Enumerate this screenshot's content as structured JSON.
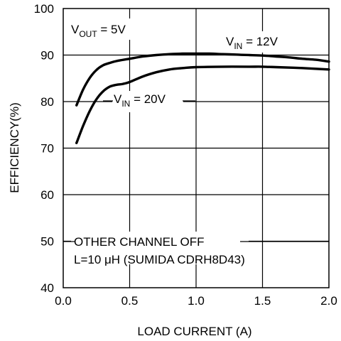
{
  "chart_data": {
    "type": "line",
    "xlabel": "LOAD CURRENT (A)",
    "ylabel": "EFFICIENCY(%)",
    "xlim": [
      0.0,
      2.0
    ],
    "ylim": [
      40,
      100
    ],
    "x_ticks": [
      0.0,
      0.5,
      1.0,
      1.5,
      2.0
    ],
    "x_tick_labels": [
      "0.0",
      "0.5",
      "1.0",
      "1.5",
      "2.0"
    ],
    "y_ticks": [
      40,
      50,
      60,
      70,
      80,
      90,
      100
    ],
    "y_tick_labels": [
      "40",
      "50",
      "60",
      "70",
      "80",
      "90",
      "100"
    ],
    "grid": true,
    "series": [
      {
        "name": "VIN = 12V",
        "label": {
          "main": "V",
          "sub": "IN",
          "rest": " = 12V"
        },
        "x": [
          0.1,
          0.15,
          0.2,
          0.25,
          0.3,
          0.35,
          0.4,
          0.5,
          0.6,
          0.7,
          0.8,
          0.9,
          1.0,
          1.1,
          1.2,
          1.3,
          1.4,
          1.5,
          1.6,
          1.7,
          1.8,
          1.9,
          2.0
        ],
        "y": [
          79.2,
          82.6,
          85.1,
          86.8,
          87.8,
          88.3,
          88.7,
          89.2,
          89.7,
          90.0,
          90.2,
          90.3,
          90.3,
          90.3,
          90.2,
          90.1,
          90.0,
          89.9,
          89.7,
          89.5,
          89.2,
          89.0,
          88.6
        ]
      },
      {
        "name": "VIN = 20V",
        "label": {
          "main": "V",
          "sub": "IN",
          "rest": " = 20V"
        },
        "x": [
          0.1,
          0.15,
          0.2,
          0.25,
          0.3,
          0.35,
          0.4,
          0.45,
          0.5,
          0.6,
          0.7,
          0.8,
          0.9,
          1.0,
          1.2,
          1.4,
          1.5,
          1.6,
          1.8,
          2.0
        ],
        "y": [
          71.1,
          74.8,
          78.0,
          80.5,
          82.2,
          83.2,
          83.6,
          83.8,
          84.2,
          85.4,
          86.3,
          86.9,
          87.2,
          87.4,
          87.5,
          87.5,
          87.5,
          87.4,
          87.2,
          86.9
        ]
      }
    ],
    "annotations": {
      "vout": {
        "main": "V",
        "sub": "OUT",
        "rest": " = 5V"
      },
      "note_line1": "OTHER CHANNEL OFF",
      "note_line2": "L=10 μH (SUMIDA CDRH8D43)"
    }
  }
}
